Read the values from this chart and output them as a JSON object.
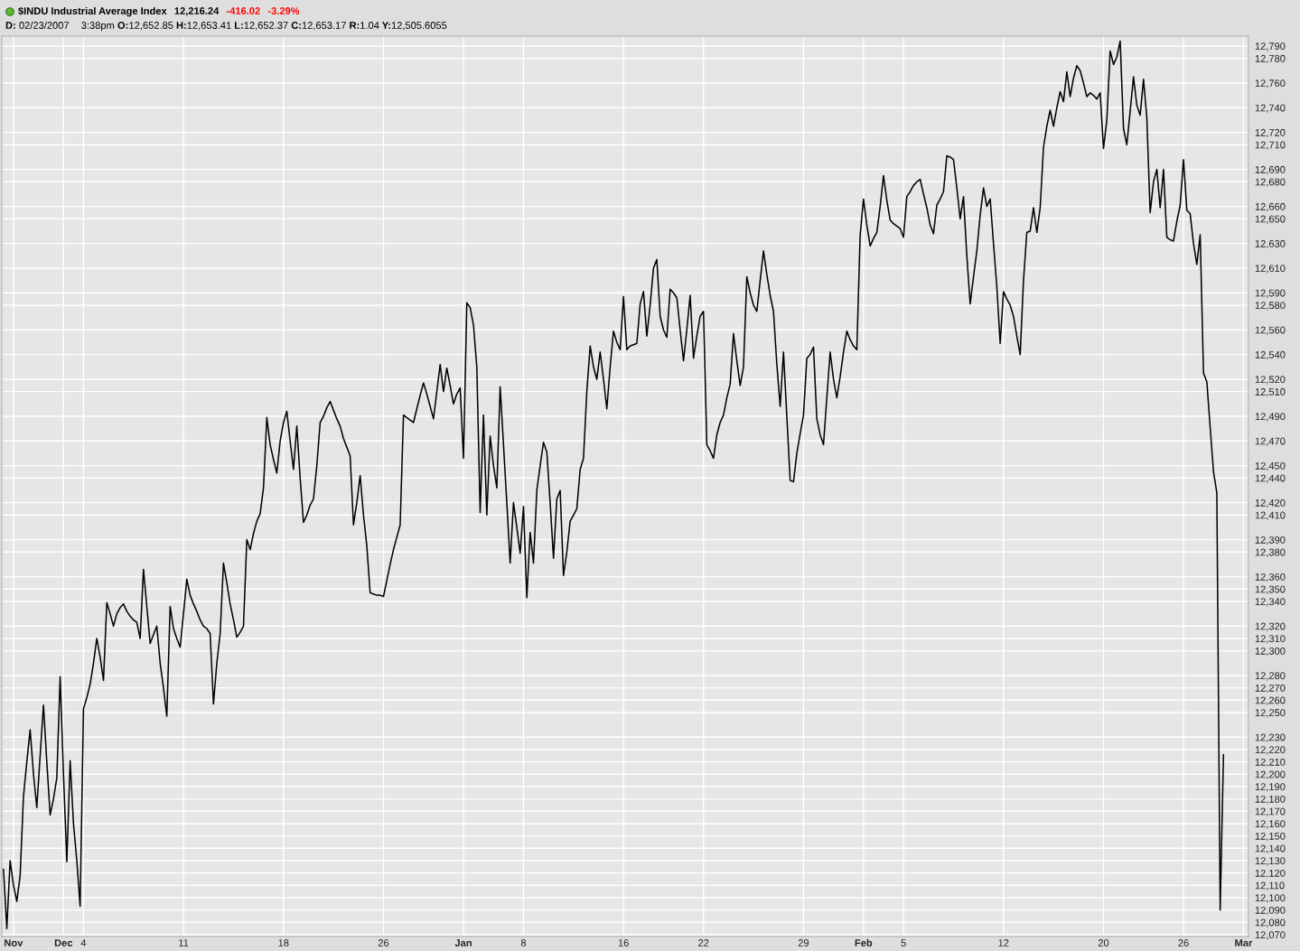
{
  "chart_data": {
    "type": "line",
    "title": "$INDU Industrial Average Index",
    "annotations": [
      "12,216.24",
      "-416.02",
      "-3.29%",
      "D: 02/23/2007",
      "3:38pm",
      "O:12,652.85",
      "H:12,653.41",
      "L:12,652.37",
      "C:12,653.17",
      "R:1.04",
      "Y:12,505.6055"
    ],
    "categories": [
      null,
      null,
      null,
      "Nov",
      null,
      null,
      null,
      null,
      null,
      null,
      null,
      null,
      null,
      null,
      null,
      null,
      null,
      null,
      "Dec",
      null,
      null,
      null,
      null,
      null,
      "4",
      null,
      null,
      null,
      null,
      null,
      null,
      null,
      null,
      null,
      null,
      null,
      null,
      null,
      null,
      null,
      null,
      null,
      null,
      null,
      null,
      null,
      null,
      null,
      null,
      null,
      null,
      null,
      null,
      null,
      "11",
      null,
      null,
      null,
      null,
      null,
      null,
      null,
      null,
      null,
      null,
      null,
      null,
      null,
      null,
      null,
      null,
      null,
      null,
      null,
      null,
      null,
      null,
      null,
      null,
      null,
      null,
      null,
      null,
      null,
      "18",
      null,
      null,
      null,
      null,
      null,
      null,
      null,
      null,
      null,
      null,
      null,
      null,
      null,
      null,
      null,
      null,
      null,
      null,
      null,
      null,
      null,
      null,
      null,
      null,
      null,
      null,
      null,
      null,
      null,
      "26",
      null,
      null,
      null,
      null,
      null,
      null,
      null,
      null,
      null,
      null,
      null,
      null,
      null,
      null,
      null,
      null,
      null,
      null,
      null,
      null,
      null,
      null,
      null,
      "Jan",
      null,
      null,
      null,
      null,
      null,
      null,
      null,
      null,
      null,
      null,
      null,
      null,
      null,
      null,
      null,
      null,
      null,
      "8",
      null,
      null,
      null,
      null,
      null,
      null,
      null,
      null,
      null,
      null,
      null,
      null,
      null,
      null,
      null,
      null,
      null,
      null,
      null,
      null,
      null,
      null,
      null,
      null,
      null,
      null,
      null,
      null,
      null,
      "16",
      null,
      null,
      null,
      null,
      null,
      null,
      null,
      null,
      null,
      null,
      null,
      null,
      null,
      null,
      null,
      null,
      null,
      null,
      null,
      null,
      null,
      null,
      null,
      "22",
      null,
      null,
      null,
      null,
      null,
      null,
      null,
      null,
      null,
      null,
      null,
      null,
      null,
      null,
      null,
      null,
      null,
      null,
      null,
      null,
      null,
      null,
      null,
      null,
      null,
      null,
      null,
      null,
      null,
      "29",
      null,
      null,
      null,
      null,
      null,
      null,
      null,
      null,
      null,
      null,
      null,
      null,
      null,
      null,
      null,
      null,
      null,
      "Feb",
      null,
      null,
      null,
      null,
      null,
      null,
      null,
      null,
      null,
      null,
      null,
      "5",
      null,
      null,
      null,
      null,
      null,
      null,
      null,
      null,
      null,
      null,
      null,
      null,
      null,
      null,
      null,
      null,
      null,
      null,
      null,
      null,
      null,
      null,
      null,
      null,
      null,
      null,
      null,
      null,
      null,
      "12",
      null,
      null,
      null,
      null,
      null,
      null,
      null,
      null,
      null,
      null,
      null,
      null,
      null,
      null,
      null,
      null,
      null,
      null,
      null,
      null,
      null,
      null,
      null,
      null,
      null,
      null,
      null,
      null,
      null,
      "20",
      null,
      null,
      null,
      null,
      null,
      null,
      null,
      null,
      null,
      null,
      null,
      null,
      null,
      null,
      null,
      null,
      null,
      null,
      null,
      null,
      null,
      null,
      null,
      "26",
      null,
      null,
      null,
      null,
      null,
      null,
      null,
      null,
      null,
      null,
      null,
      null,
      null,
      null,
      null,
      null,
      null,
      "Mar",
      null
    ],
    "series": [
      {
        "color": "#000000",
        "values": [
          12123,
          12075,
          12130,
          12110,
          12097,
          12118,
          12182,
          12210,
          12236,
          12200,
          12173,
          12215,
          12256,
          12210,
          12167,
          12180,
          12197,
          12279,
          12200,
          12129,
          12211,
          12160,
          12130,
          12093,
          12253,
          12262,
          12273,
          12290,
          12310,
          12295,
          12276,
          12339,
          12330,
          12320,
          12330,
          12335,
          12338,
          12332,
          12328,
          12325,
          12323,
          12310,
          12366,
          12336,
          12306,
          12313,
          12320,
          12290,
          12270,
          12247,
          12336,
          12318,
          12310,
          12303,
          12330,
          12358,
          12345,
          12338,
          12332,
          12325,
          12320,
          12318,
          12314,
          12257,
          12290,
          12314,
          12371,
          12355,
          12338,
          12325,
          12311,
          12315,
          12320,
          12390,
          12382,
          12395,
          12405,
          12411,
          12432,
          12489,
          12467,
          12455,
          12444,
          12470,
          12485,
          12494,
          12470,
          12447,
          12482,
          12440,
          12404,
          12410,
          12418,
          12423,
          12450,
          12485,
          12490,
          12497,
          12502,
          12495,
          12488,
          12482,
          12472,
          12465,
          12458,
          12402,
          12420,
          12442,
          12410,
          12385,
          12347,
          12346,
          12345,
          12345,
          12344,
          12357,
          12370,
          12382,
          12392,
          12402,
          12491,
          12489,
          12487,
          12485,
          12496,
          12507,
          12517,
          12508,
          12498,
          12488,
          12510,
          12532,
          12510,
          12529,
          12515,
          12500,
          12508,
          12513,
          12456,
          12582,
          12578,
          12564,
          12530,
          12412,
          12491,
          12410,
          12474,
          12450,
          12432,
          12514,
          12467,
          12420,
          12371,
          12420,
          12400,
          12379,
          12417,
          12343,
          12396,
          12371,
          12430,
          12450,
          12469,
          12461,
          12420,
          12375,
          12423,
          12430,
          12361,
          12380,
          12405,
          12410,
          12415,
          12447,
          12456,
          12510,
          12547,
          12530,
          12520,
          12542,
          12520,
          12496,
          12530,
          12559,
          12550,
          12544,
          12587,
          12544,
          12547,
          12548,
          12549,
          12581,
          12591,
          12555,
          12580,
          12610,
          12617,
          12571,
          12560,
          12554,
          12593,
          12590,
          12586,
          12560,
          12535,
          12560,
          12588,
          12537,
          12555,
          12571,
          12575,
          12467,
          12462,
          12456,
          12475,
          12485,
          12491,
          12505,
          12516,
          12557,
          12535,
          12515,
          12530,
          12603,
          12590,
          12580,
          12575,
          12600,
          12624,
          12605,
          12588,
          12575,
          12532,
          12498,
          12542,
          12490,
          12438,
          12437,
          12460,
          12476,
          12491,
          12537,
          12540,
          12546,
          12488,
          12475,
          12467,
          12505,
          12542,
          12520,
          12505,
          12522,
          12542,
          12559,
          12552,
          12547,
          12544,
          12637,
          12666,
          12645,
          12628,
          12634,
          12639,
          12660,
          12685,
          12665,
          12649,
          12646,
          12644,
          12642,
          12635,
          12668,
          12672,
          12677,
          12680,
          12682,
          12670,
          12659,
          12645,
          12638,
          12661,
          12666,
          12672,
          12701,
          12700,
          12698,
          12675,
          12650,
          12668,
          12620,
          12581,
          12603,
          12624,
          12653,
          12675,
          12660,
          12666,
          12630,
          12595,
          12549,
          12591,
          12585,
          12580,
          12571,
          12555,
          12540,
          12600,
          12639,
          12640,
          12659,
          12639,
          12659,
          12708,
          12725,
          12738,
          12725,
          12740,
          12753,
          12745,
          12769,
          12749,
          12764,
          12774,
          12770,
          12760,
          12749,
          12752,
          12750,
          12747,
          12752,
          12707,
          12730,
          12786,
          12775,
          12781,
          12794,
          12723,
          12710,
          12737,
          12765,
          12742,
          12734,
          12763,
          12732,
          12655,
          12680,
          12690,
          12659,
          12690,
          12635,
          12633,
          12632,
          12648,
          12661,
          12698,
          12657,
          12654,
          12630,
          12613,
          12637,
          12525,
          12518,
          12481,
          12445,
          12428,
          12090,
          12216,
          null,
          null,
          null,
          null,
          null,
          null,
          null
        ]
      }
    ],
    "ylim": [
      12068.5,
      12798
    ],
    "yticks": [
      {
        "value": 12790,
        "label": "12,790"
      },
      {
        "value": 12780,
        "label": "12,780"
      },
      {
        "value": 12760,
        "label": "12,760"
      },
      {
        "value": 12740,
        "label": "12,740"
      },
      {
        "value": 12720,
        "label": "12,720"
      },
      {
        "value": 12710,
        "label": "12,710"
      },
      {
        "value": 12690,
        "label": "12,690"
      },
      {
        "value": 12680,
        "label": "12,680"
      },
      {
        "value": 12660,
        "label": "12,660"
      },
      {
        "value": 12650,
        "label": "12,650"
      },
      {
        "value": 12630,
        "label": "12,630"
      },
      {
        "value": 12610,
        "label": "12,610"
      },
      {
        "value": 12590,
        "label": "12,590"
      },
      {
        "value": 12580,
        "label": "12,580"
      },
      {
        "value": 12560,
        "label": "12,560"
      },
      {
        "value": 12540,
        "label": "12,540"
      },
      {
        "value": 12520,
        "label": "12,520"
      },
      {
        "value": 12510,
        "label": "12,510"
      },
      {
        "value": 12490,
        "label": "12,490"
      },
      {
        "value": 12470,
        "label": "12,470"
      },
      {
        "value": 12450,
        "label": "12,450"
      },
      {
        "value": 12440,
        "label": "12,440"
      },
      {
        "value": 12420,
        "label": "12,420"
      },
      {
        "value": 12410,
        "label": "12,410"
      },
      {
        "value": 12390,
        "label": "12,390"
      },
      {
        "value": 12380,
        "label": "12,380"
      },
      {
        "value": 12360,
        "label": "12,360"
      },
      {
        "value": 12350,
        "label": "12,350"
      },
      {
        "value": 12340,
        "label": "12,340"
      },
      {
        "value": 12320,
        "label": "12,320"
      },
      {
        "value": 12310,
        "label": "12,310"
      },
      {
        "value": 12300,
        "label": "12,300"
      },
      {
        "value": 12280,
        "label": "12,280"
      },
      {
        "value": 12270,
        "label": "12,270"
      },
      {
        "value": 12260,
        "label": "12,260"
      },
      {
        "value": 12250,
        "label": "12,250"
      },
      {
        "value": 12230,
        "label": "12,230"
      },
      {
        "value": 12220,
        "label": "12,220"
      },
      {
        "value": 12210,
        "label": "12,210"
      },
      {
        "value": 12200,
        "label": "12,200"
      },
      {
        "value": 12190,
        "label": "12,190"
      },
      {
        "value": 12180,
        "label": "12,180"
      },
      {
        "value": 12170,
        "label": "12,170"
      },
      {
        "value": 12160,
        "label": "12,160"
      },
      {
        "value": 12150,
        "label": "12,150"
      },
      {
        "value": 12140,
        "label": "12,140"
      },
      {
        "value": 12130,
        "label": "12,130"
      },
      {
        "value": 12120,
        "label": "12,120"
      },
      {
        "value": 12110,
        "label": "12,110"
      },
      {
        "value": 12100,
        "label": "12,100"
      },
      {
        "value": 12090,
        "label": "12,090"
      },
      {
        "value": 12080,
        "label": "12,080"
      },
      {
        "value": 12070,
        "label": "12,070"
      }
    ],
    "grid": true
  }
}
